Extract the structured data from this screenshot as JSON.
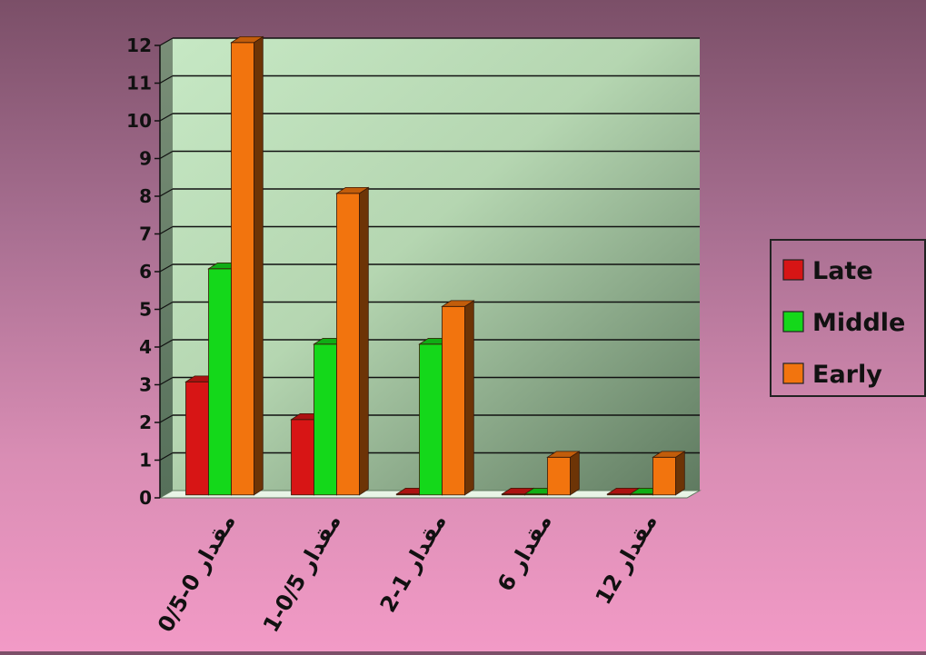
{
  "chart_data": {
    "type": "bar",
    "categories": [
      "مقدار 0-0/5",
      "مقدار 0/5-1",
      "مقدار 1-2",
      "مقدار 6",
      "مقدار 12"
    ],
    "series": [
      {
        "name": "Late",
        "values": [
          3,
          2,
          0,
          0,
          0
        ],
        "color": "#d71515"
      },
      {
        "name": "Middle",
        "values": [
          6,
          4,
          4,
          0,
          0
        ],
        "color": "#14d81a"
      },
      {
        "name": "Early",
        "values": [
          12,
          8,
          5,
          1,
          1
        ],
        "color": "#f2740e"
      }
    ],
    "yticks": [
      "0",
      "1",
      "2",
      "3",
      "4",
      "5",
      "6",
      "7",
      "8",
      "9",
      "10",
      "11",
      "12"
    ],
    "ylim": [
      0,
      12
    ],
    "grid": true,
    "legend_position": "right",
    "title": "",
    "xlabel": "",
    "ylabel": ""
  }
}
